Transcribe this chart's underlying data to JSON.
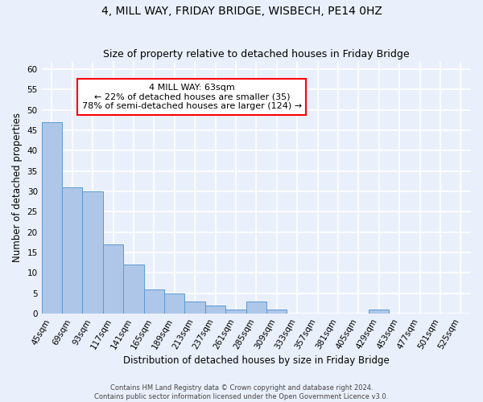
{
  "title": "4, MILL WAY, FRIDAY BRIDGE, WISBECH, PE14 0HZ",
  "subtitle": "Size of property relative to detached houses in Friday Bridge",
  "xlabel": "Distribution of detached houses by size in Friday Bridge",
  "ylabel": "Number of detached properties",
  "footer_line1": "Contains HM Land Registry data © Crown copyright and database right 2024.",
  "footer_line2": "Contains public sector information licensed under the Open Government Licence v3.0.",
  "categories": [
    "45sqm",
    "69sqm",
    "93sqm",
    "117sqm",
    "141sqm",
    "165sqm",
    "189sqm",
    "213sqm",
    "237sqm",
    "261sqm",
    "285sqm",
    "309sqm",
    "333sqm",
    "357sqm",
    "381sqm",
    "405sqm",
    "429sqm",
    "453sqm",
    "477sqm",
    "501sqm",
    "525sqm"
  ],
  "values": [
    47,
    31,
    30,
    17,
    12,
    6,
    5,
    3,
    2,
    1,
    3,
    1,
    0,
    0,
    0,
    0,
    1,
    0,
    0,
    0,
    0
  ],
  "bar_color": "#aec6e8",
  "bar_edge_color": "#5b9bd5",
  "annotation_text": "4 MILL WAY: 63sqm\n← 22% of detached houses are smaller (35)\n78% of semi-detached houses are larger (124) →",
  "annotation_box_color": "white",
  "annotation_box_edge_color": "red",
  "ylim": [
    0,
    62
  ],
  "yticks": [
    0,
    5,
    10,
    15,
    20,
    25,
    30,
    35,
    40,
    45,
    50,
    55,
    60
  ],
  "bg_color": "#eaf0fb",
  "plot_bg_color": "#eaf0fb",
  "grid_color": "white",
  "title_fontsize": 10,
  "subtitle_fontsize": 9,
  "axis_label_fontsize": 8.5,
  "tick_fontsize": 7.5,
  "annotation_fontsize": 8,
  "footer_fontsize": 6
}
